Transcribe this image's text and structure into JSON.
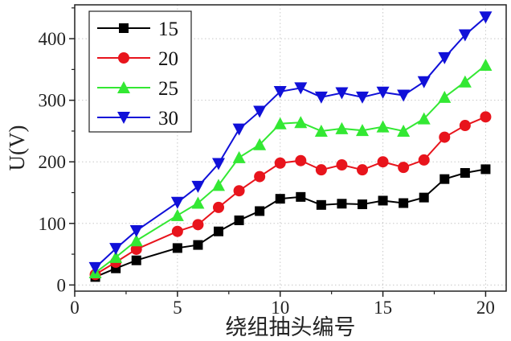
{
  "chart_data": {
    "type": "line",
    "title": "",
    "xlabel": "绕组抽头编号",
    "ylabel": "U(V)",
    "xlim": [
      0,
      21
    ],
    "ylim": [
      -10,
      455
    ],
    "xticks": [
      0,
      5,
      10,
      15,
      20
    ],
    "yticks": [
      0,
      100,
      200,
      300,
      400
    ],
    "grid": true,
    "legend": "top-left",
    "x": [
      1,
      2,
      3,
      5,
      6,
      7,
      8,
      9,
      10,
      11,
      12,
      13,
      14,
      15,
      16,
      17,
      18,
      19,
      20
    ],
    "series": [
      {
        "name": "15",
        "color": "#000000",
        "marker": "square",
        "values": [
          13,
          27,
          40,
          60,
          65,
          87,
          105,
          120,
          140,
          143,
          130,
          132,
          131,
          137,
          133,
          142,
          172,
          182,
          188
        ]
      },
      {
        "name": "20",
        "color": "#e8141c",
        "marker": "circle",
        "values": [
          17,
          37,
          58,
          87,
          98,
          126,
          153,
          176,
          198,
          202,
          187,
          195,
          187,
          200,
          191,
          203,
          240,
          259,
          273
        ]
      },
      {
        "name": "25",
        "color": "#33e833",
        "marker": "triangle-up",
        "values": [
          20,
          45,
          72,
          113,
          133,
          162,
          207,
          228,
          262,
          264,
          250,
          254,
          251,
          257,
          250,
          270,
          305,
          330,
          357
        ]
      },
      {
        "name": "30",
        "color": "#1010d8",
        "marker": "triangle-down",
        "values": [
          28,
          59,
          88,
          134,
          160,
          197,
          253,
          282,
          314,
          320,
          305,
          312,
          305,
          313,
          308,
          330,
          369,
          406,
          435
        ]
      }
    ]
  }
}
